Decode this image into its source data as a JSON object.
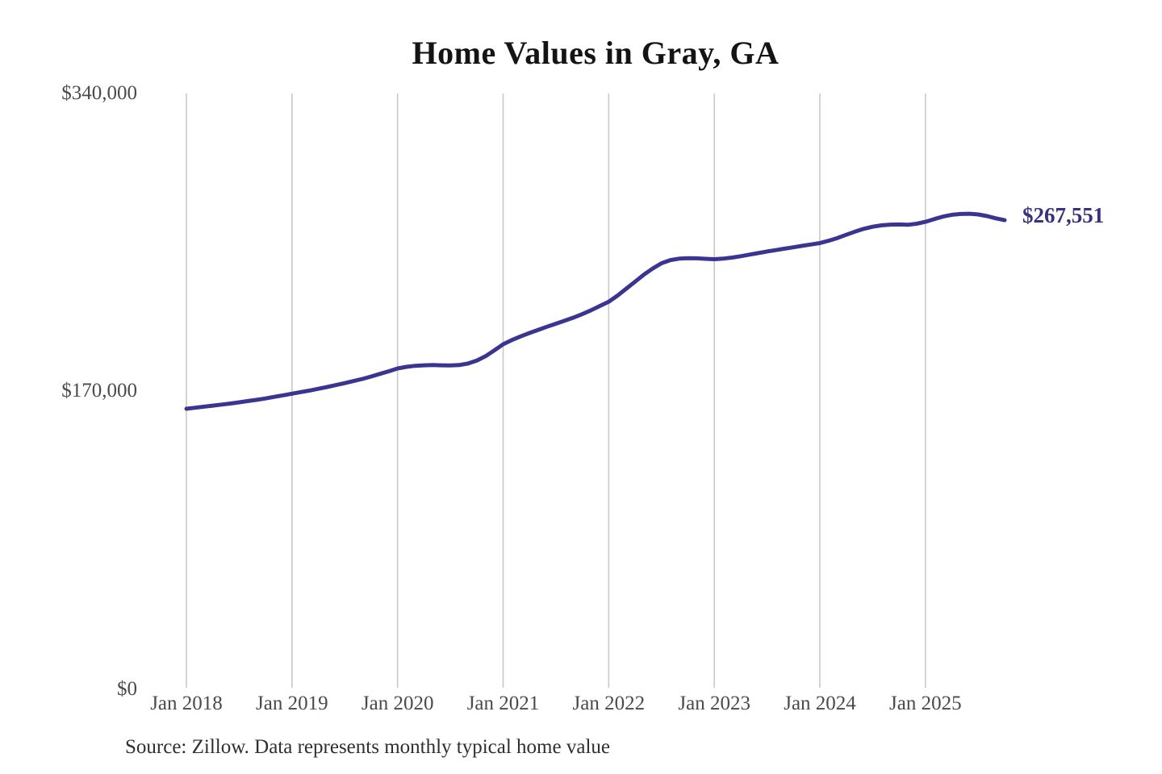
{
  "chart_data": {
    "type": "line",
    "title": "Home Values in Gray, GA",
    "source_note": "Source: Zillow. Data represents monthly typical home value",
    "series_name": "Monthly typical home value",
    "x_domain": {
      "start": "Jan 2018",
      "end": "Oct 2025",
      "interval": "monthly"
    },
    "x_tick_labels": [
      "Jan 2018",
      "Jan 2019",
      "Jan 2020",
      "Jan 2021",
      "Jan 2022",
      "Jan 2023",
      "Jan 2024",
      "Jan 2025"
    ],
    "y_ticks": [
      {
        "label": "$0",
        "value": 0
      },
      {
        "label": "$170,000",
        "value": 170000
      },
      {
        "label": "$340,000",
        "value": 340000
      }
    ],
    "ylim": [
      0,
      340000
    ],
    "grid": "vertical-only",
    "legend": "none",
    "end_label": "$267,551",
    "end_value": 267551,
    "values": [
      160000,
      160600,
      161200,
      161800,
      162400,
      163000,
      163700,
      164400,
      165100,
      165900,
      166800,
      167700,
      168600,
      169500,
      170400,
      171400,
      172400,
      173500,
      174600,
      175800,
      177000,
      178400,
      179900,
      181400,
      183000,
      183900,
      184500,
      184800,
      184900,
      184800,
      184700,
      184900,
      185800,
      187500,
      190000,
      193300,
      196800,
      199200,
      201300,
      203200,
      205000,
      206800,
      208500,
      210200,
      212000,
      214000,
      216200,
      218600,
      221000,
      224500,
      228500,
      232500,
      236500,
      240000,
      243000,
      244800,
      245600,
      245900,
      245800,
      245500,
      245300,
      245600,
      246200,
      247000,
      247900,
      248800,
      249700,
      250500,
      251300,
      252100,
      252900,
      253700,
      254500,
      255800,
      257400,
      259200,
      261000,
      262600,
      263800,
      264600,
      265000,
      265100,
      264900,
      265500,
      266600,
      268200,
      269600,
      270600,
      271100,
      271200,
      270800,
      269900,
      268600,
      267551
    ],
    "colors": {
      "line": "#3b3592",
      "end_label_text": "#373180",
      "grid": "#c9c9c9",
      "axis_text": "#4a4a4a",
      "title_text": "#141414",
      "source_text": "#2f2f2f"
    }
  }
}
